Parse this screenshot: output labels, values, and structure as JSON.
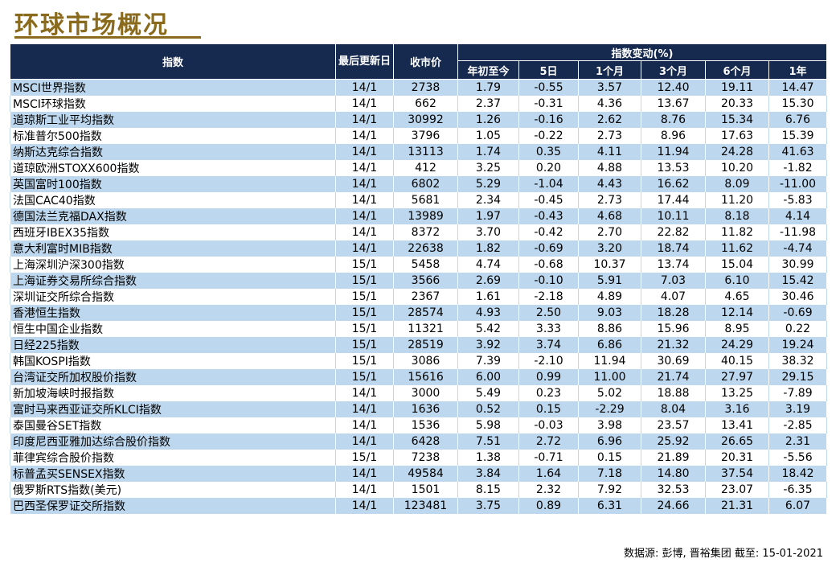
{
  "title": "环球市场概况",
  "header": {
    "index": "指数",
    "last_update": "最后更新日",
    "close": "收市价",
    "change_group": "指数变动(%)",
    "periods": [
      "年初至今",
      "5日",
      "1个月",
      "3个月",
      "6个月",
      "1年"
    ]
  },
  "rows": [
    {
      "name": "MSCI世界指数",
      "date": "14/1",
      "close": "2738",
      "ytd": "1.79",
      "d5": "-0.55",
      "m1": "3.57",
      "m3": "12.40",
      "m6": "19.11",
      "y1": "14.47"
    },
    {
      "name": "MSCI环球指数",
      "date": "14/1",
      "close": "662",
      "ytd": "2.37",
      "d5": "-0.31",
      "m1": "4.36",
      "m3": "13.67",
      "m6": "20.33",
      "y1": "15.30"
    },
    {
      "name": "道琼斯工业平均指数",
      "date": "14/1",
      "close": "30992",
      "ytd": "1.26",
      "d5": "-0.16",
      "m1": "2.62",
      "m3": "8.76",
      "m6": "15.34",
      "y1": "6.76"
    },
    {
      "name": "标准普尔500指数",
      "date": "14/1",
      "close": "3796",
      "ytd": "1.05",
      "d5": "-0.22",
      "m1": "2.73",
      "m3": "8.96",
      "m6": "17.63",
      "y1": "15.39"
    },
    {
      "name": "纳斯达克综合指数",
      "date": "14/1",
      "close": "13113",
      "ytd": "1.74",
      "d5": "0.35",
      "m1": "4.11",
      "m3": "11.94",
      "m6": "24.28",
      "y1": "41.63"
    },
    {
      "name": "道琼欧洲STOXX600指数",
      "date": "14/1",
      "close": "412",
      "ytd": "3.25",
      "d5": "0.20",
      "m1": "4.88",
      "m3": "13.53",
      "m6": "10.20",
      "y1": "-1.82"
    },
    {
      "name": "英国富时100指数",
      "date": "14/1",
      "close": "6802",
      "ytd": "5.29",
      "d5": "-1.04",
      "m1": "4.43",
      "m3": "16.62",
      "m6": "8.09",
      "y1": "-11.00"
    },
    {
      "name": "法国CAC40指数",
      "date": "14/1",
      "close": "5681",
      "ytd": "2.34",
      "d5": "-0.45",
      "m1": "2.73",
      "m3": "17.44",
      "m6": "11.20",
      "y1": "-5.83"
    },
    {
      "name": "德国法兰克福DAX指数",
      "date": "14/1",
      "close": "13989",
      "ytd": "1.97",
      "d5": "-0.43",
      "m1": "4.68",
      "m3": "10.11",
      "m6": "8.18",
      "y1": "4.14"
    },
    {
      "name": "西班牙IBEX35指数",
      "date": "14/1",
      "close": "8372",
      "ytd": "3.70",
      "d5": "-0.42",
      "m1": "2.70",
      "m3": "22.82",
      "m6": "11.82",
      "y1": "-11.98"
    },
    {
      "name": "意大利富时MIB指数",
      "date": "14/1",
      "close": "22638",
      "ytd": "1.82",
      "d5": "-0.69",
      "m1": "3.20",
      "m3": "18.74",
      "m6": "11.62",
      "y1": "-4.74"
    },
    {
      "name": "上海深圳沪深300指数",
      "date": "15/1",
      "close": "5458",
      "ytd": "4.74",
      "d5": "-0.68",
      "m1": "10.37",
      "m3": "13.74",
      "m6": "15.04",
      "y1": "30.99"
    },
    {
      "name": "上海证券交易所综合指数",
      "date": "15/1",
      "close": "3566",
      "ytd": "2.69",
      "d5": "-0.10",
      "m1": "5.91",
      "m3": "7.03",
      "m6": "6.10",
      "y1": "15.42"
    },
    {
      "name": "深圳证交所综合指数",
      "date": "15/1",
      "close": "2367",
      "ytd": "1.61",
      "d5": "-2.18",
      "m1": "4.89",
      "m3": "4.07",
      "m6": "4.65",
      "y1": "30.46"
    },
    {
      "name": "香港恒生指数",
      "date": "15/1",
      "close": "28574",
      "ytd": "4.93",
      "d5": "2.50",
      "m1": "9.03",
      "m3": "18.28",
      "m6": "12.14",
      "y1": "-0.69"
    },
    {
      "name": "恒生中国企业指数",
      "date": "15/1",
      "close": "11321",
      "ytd": "5.42",
      "d5": "3.33",
      "m1": "8.86",
      "m3": "15.96",
      "m6": "8.95",
      "y1": "0.22"
    },
    {
      "name": "日经225指数",
      "date": "15/1",
      "close": "28519",
      "ytd": "3.92",
      "d5": "3.74",
      "m1": "6.86",
      "m3": "21.32",
      "m6": "24.29",
      "y1": "19.24"
    },
    {
      "name": "韩国KOSPI指数",
      "date": "15/1",
      "close": "3086",
      "ytd": "7.39",
      "d5": "-2.10",
      "m1": "11.94",
      "m3": "30.69",
      "m6": "40.15",
      "y1": "38.32"
    },
    {
      "name": "台湾证交所加权股价指数",
      "date": "15/1",
      "close": "15616",
      "ytd": "6.00",
      "d5": "0.99",
      "m1": "11.00",
      "m3": "21.74",
      "m6": "27.97",
      "y1": "29.15"
    },
    {
      "name": "新加坡海峡时报指数",
      "date": "14/1",
      "close": "3000",
      "ytd": "5.49",
      "d5": "0.23",
      "m1": "5.02",
      "m3": "18.88",
      "m6": "13.25",
      "y1": "-7.89"
    },
    {
      "name": "富时马来西亚证交所KLCI指数",
      "date": "14/1",
      "close": "1636",
      "ytd": "0.52",
      "d5": "0.15",
      "m1": "-2.29",
      "m3": "8.04",
      "m6": "3.16",
      "y1": "3.19"
    },
    {
      "name": "泰国曼谷SET指数",
      "date": "14/1",
      "close": "1536",
      "ytd": "5.98",
      "d5": "-0.03",
      "m1": "3.98",
      "m3": "23.57",
      "m6": "13.41",
      "y1": "-2.85"
    },
    {
      "name": "印度尼西亚雅加达综合股价指数",
      "date": "14/1",
      "close": "6428",
      "ytd": "7.51",
      "d5": "2.72",
      "m1": "6.96",
      "m3": "25.92",
      "m6": "26.65",
      "y1": "2.31"
    },
    {
      "name": "菲律宾综合股价指数",
      "date": "15/1",
      "close": "7238",
      "ytd": "1.38",
      "d5": "-0.71",
      "m1": "0.15",
      "m3": "21.89",
      "m6": "20.31",
      "y1": "-5.56"
    },
    {
      "name": "标普孟买SENSEX指数",
      "date": "14/1",
      "close": "49584",
      "ytd": "3.84",
      "d5": "1.64",
      "m1": "7.18",
      "m3": "14.80",
      "m6": "37.54",
      "y1": "18.42"
    },
    {
      "name": "俄罗斯RTS指数(美元)",
      "date": "14/1",
      "close": "1501",
      "ytd": "8.15",
      "d5": "2.32",
      "m1": "7.92",
      "m3": "32.53",
      "m6": "23.07",
      "y1": "-6.35"
    },
    {
      "name": "巴西圣保罗证交所指数",
      "date": "14/1",
      "close": "123481",
      "ytd": "3.75",
      "d5": "0.89",
      "m1": "6.31",
      "m3": "24.66",
      "m6": "21.31",
      "y1": "6.07"
    }
  ],
  "source": "数据源: 彭博, 晋裕集团 截至: 15-01-2021"
}
